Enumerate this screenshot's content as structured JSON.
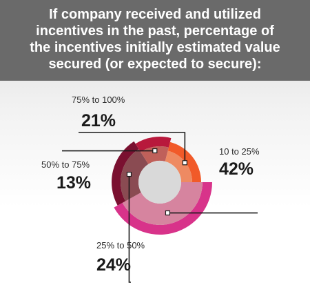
{
  "title_lines": [
    "If company received and utilized",
    "incentives in the past, percentage of",
    "the incentives initially estimated value",
    "secured (or expected to secure):"
  ],
  "chart_data": {
    "type": "pie",
    "title": "If company received and utilized incentives in the past, percentage of the incentives initially estimated value secured (or expected to secure):",
    "categories": [
      "10 to 25%",
      "25% to 50%",
      "50% to 75%",
      "75% to 100%"
    ],
    "values": [
      42,
      24,
      13,
      21
    ],
    "value_labels": [
      "42%",
      "24%",
      "13%",
      "21%"
    ],
    "colors": {
      "outer": [
        "#d8338a",
        "#7a1030",
        "#b8193c",
        "#f15a29"
      ],
      "inner": [
        "#d6849f",
        "#8a4b52",
        "#c0605a",
        "#ee8a62"
      ],
      "center": "#d9d9d9"
    }
  }
}
